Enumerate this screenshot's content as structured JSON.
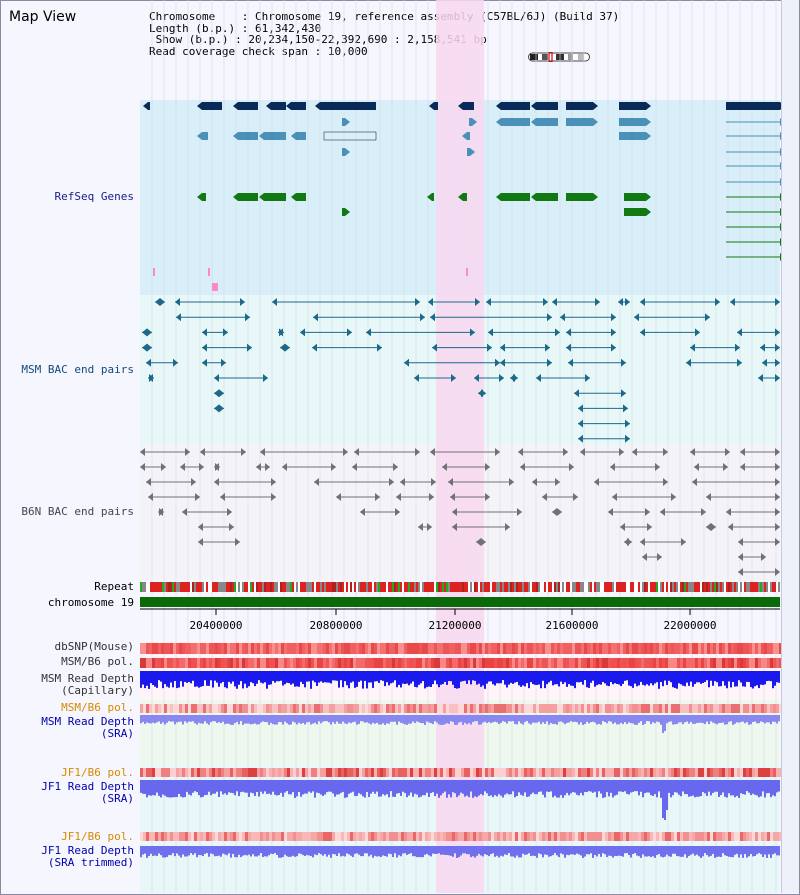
{
  "view": {
    "title": "Map View",
    "chromosome_label": "Chromosome",
    "chromosome_value": "Chromosome 19, reference assembly (C57BL/6J) (Build 37)",
    "length_label": "Length (b.p.)",
    "length_value": "61,342,430",
    "show_label": "Show (b.p.)",
    "show_value": "20,234,150-22,392,690 : 2,158,541 bp",
    "coverage_label": "Read coverage check span",
    "coverage_value": "10,000"
  },
  "tracks": {
    "refseq": "RefSeq Genes",
    "msm_bac": "MSM BAC end pairs",
    "b6n_bac": "B6N BAC end pairs",
    "repeat": "Repeat",
    "chromosome": "chromosome 19",
    "dbsnp": "dbSNP(Mouse)",
    "msm_b6_pol_1": "MSM/B6 pol.",
    "msm_depth_cap_1": "MSM Read Depth",
    "msm_depth_cap_2": "(Capillary)",
    "msm_b6_pol_2": "MSM/B6 pol.",
    "msm_depth_sra_1": "MSM Read Depth",
    "msm_depth_sra_2": "(SRA)",
    "jf1_b6_pol_1": "JF1/B6 pol.",
    "jf1_depth_sra_1": "JF1 Read Depth",
    "jf1_depth_sra_2": "(SRA)",
    "jf1_b6_pol_2": "JF1/B6 pol.",
    "jf1_depth_trim_1": "JF1 Read Depth",
    "jf1_depth_trim_2": "(SRA trimmed)"
  },
  "axis": {
    "ticks": [
      "20400000",
      "20800000",
      "21200000",
      "21600000",
      "22000000"
    ]
  },
  "colors": {
    "refseq_bg": "#d8eef8",
    "bac_bg": "#e8f8f8",
    "b6n_bg": "#f4f4f8",
    "highlight": "#f8d8f0",
    "navy": "#0a2a5a",
    "steel": "#4a90b8",
    "green": "#127812",
    "chrom_green": "#0a6a0a",
    "label_navy": "#1a1a8a",
    "label_teal": "#104a7a",
    "label_orange": "#d88a00",
    "label_blue": "#0000aa"
  }
}
